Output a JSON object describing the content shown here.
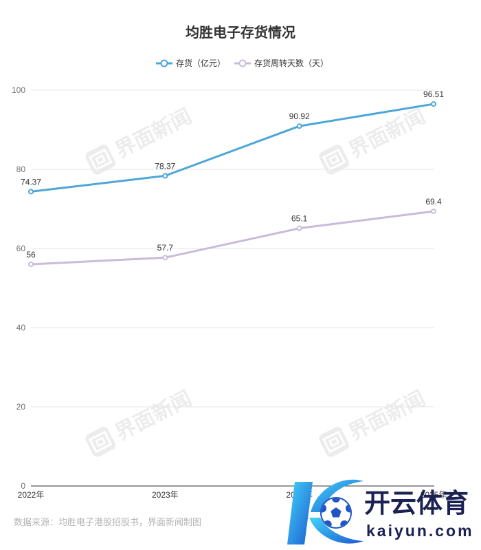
{
  "chart_data": {
    "type": "line",
    "title": "均胜电子存货情况",
    "categories": [
      "2022年",
      "2023年",
      "2024年",
      "2025年"
    ],
    "series": [
      {
        "name": "存货（亿元）",
        "values": [
          74.37,
          78.37,
          90.92,
          96.51
        ],
        "color": "#4ea6d8"
      },
      {
        "name": "存货周转天数（天）",
        "values": [
          56,
          57.7,
          65.1,
          69.4
        ],
        "color": "#c9bbd9"
      }
    ],
    "ylim": [
      0,
      100
    ],
    "yticks": [
      0,
      20,
      40,
      60,
      80,
      100
    ],
    "grid": true,
    "data_labels": true,
    "legend_position": "top-center"
  },
  "source": "数据来源：均胜电子港股招股书，界面新闻制图",
  "watermark": "界面新闻",
  "overlay_logo": {
    "name": "开云体育",
    "url": "kaiyun.com"
  },
  "colors": {
    "title": "#333333",
    "axis": "#333333",
    "gridline": "#e6e6e6",
    "source": "#b4b4b4",
    "logo_text": "#1b2253",
    "logo_blue": "#1f56c4"
  }
}
